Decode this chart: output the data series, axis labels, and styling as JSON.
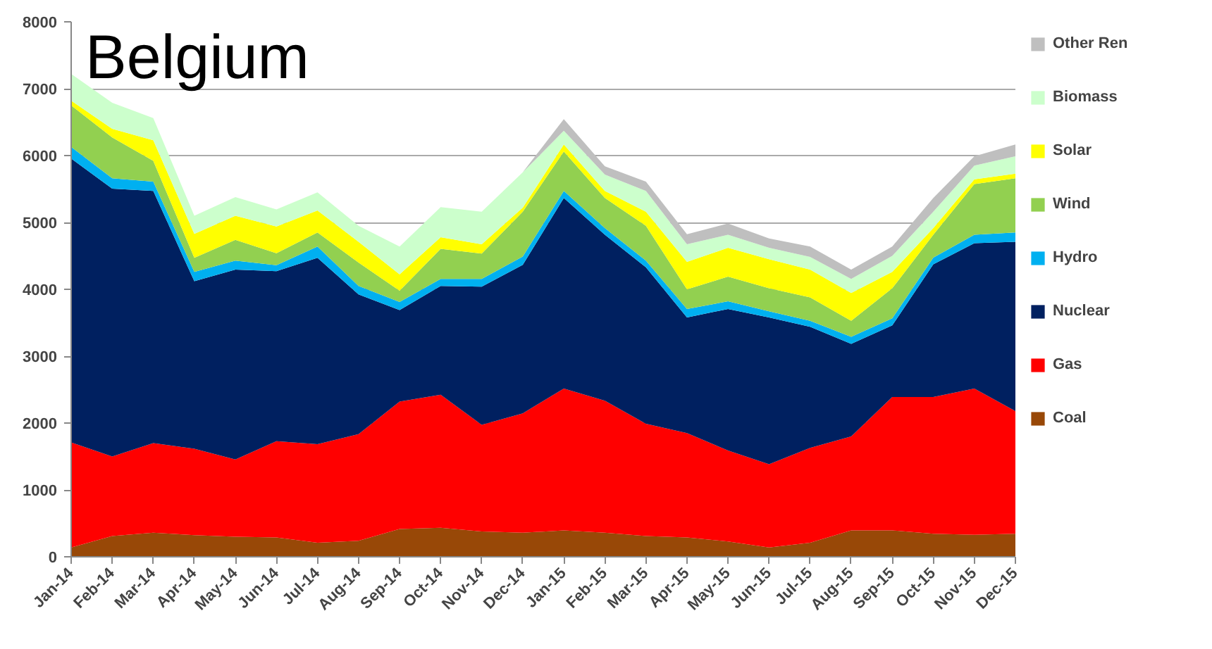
{
  "chart_data": {
    "type": "area",
    "stacked": true,
    "title": "Belgium",
    "categories": [
      "Jan-14",
      "Feb-14",
      "Mar-14",
      "Apr-14",
      "May-14",
      "Jun-14",
      "Jul-14",
      "Aug-14",
      "Sep-14",
      "Oct-14",
      "Nov-14",
      "Dec-14",
      "Jan-15",
      "Feb-15",
      "Mar-15",
      "Apr-15",
      "May-15",
      "Jun-15",
      "Jul-15",
      "Aug-15",
      "Sep-15",
      "Oct-15",
      "Nov-15",
      "Dec-15"
    ],
    "series": [
      {
        "name": "Coal",
        "color": "#984807",
        "values": [
          140,
          310,
          360,
          325,
          300,
          290,
          210,
          240,
          415,
          435,
          380,
          360,
          395,
          360,
          310,
          290,
          230,
          140,
          210,
          395,
          395,
          345,
          330,
          345
        ]
      },
      {
        "name": "Gas",
        "color": "#ff0000",
        "values": [
          1570,
          1190,
          1340,
          1290,
          1155,
          1440,
          1475,
          1595,
          1905,
          1990,
          1595,
          1785,
          2120,
          1975,
          1680,
          1560,
          1360,
          1245,
          1420,
          1405,
          1995,
          2045,
          2185,
          1835
        ]
      },
      {
        "name": "Nuclear",
        "color": "#002060",
        "values": [
          4245,
          4005,
          3770,
          2505,
          2840,
          2540,
          2785,
          2090,
          1370,
          1625,
          2065,
          2220,
          2850,
          2480,
          2340,
          1730,
          2115,
          2195,
          1810,
          1385,
          1070,
          1985,
          2175,
          2530
        ]
      },
      {
        "name": "Hydro",
        "color": "#00b0f0",
        "values": [
          175,
          155,
          140,
          140,
          135,
          90,
          170,
          125,
          120,
          105,
          115,
          125,
          105,
          100,
          100,
          125,
          115,
          90,
          90,
          105,
          105,
          100,
          125,
          140
        ]
      },
      {
        "name": "Wind",
        "color": "#92d050",
        "values": [
          620,
          610,
          310,
          210,
          310,
          180,
          210,
          350,
          170,
          450,
          380,
          670,
          590,
          450,
          520,
          295,
          370,
          345,
          350,
          240,
          450,
          340,
          760,
          810
        ]
      },
      {
        "name": "Solar",
        "color": "#ffff00",
        "values": [
          70,
          130,
          310,
          360,
          360,
          400,
          330,
          310,
          245,
          175,
          140,
          60,
          105,
          105,
          210,
          410,
          430,
          435,
          415,
          415,
          245,
          100,
          70,
          70
        ]
      },
      {
        "name": "Biomass",
        "color": "#ccffcc",
        "values": [
          400,
          390,
          330,
          270,
          280,
          255,
          270,
          240,
          415,
          450,
          485,
          530,
          205,
          245,
          310,
          265,
          195,
          170,
          190,
          210,
          240,
          245,
          205,
          260
        ]
      },
      {
        "name": "Other Ren",
        "color": "#bfbfbf",
        "values": [
          0,
          0,
          0,
          0,
          0,
          0,
          0,
          0,
          0,
          0,
          0,
          0,
          175,
          125,
          140,
          150,
          170,
          140,
          155,
          140,
          140,
          205,
          140,
          175
        ]
      }
    ],
    "ylim": [
      0,
      8000
    ],
    "yticks": [
      0,
      1000,
      2000,
      3000,
      4000,
      5000,
      6000,
      7000,
      8000
    ],
    "grid": "y",
    "legend": "right"
  }
}
